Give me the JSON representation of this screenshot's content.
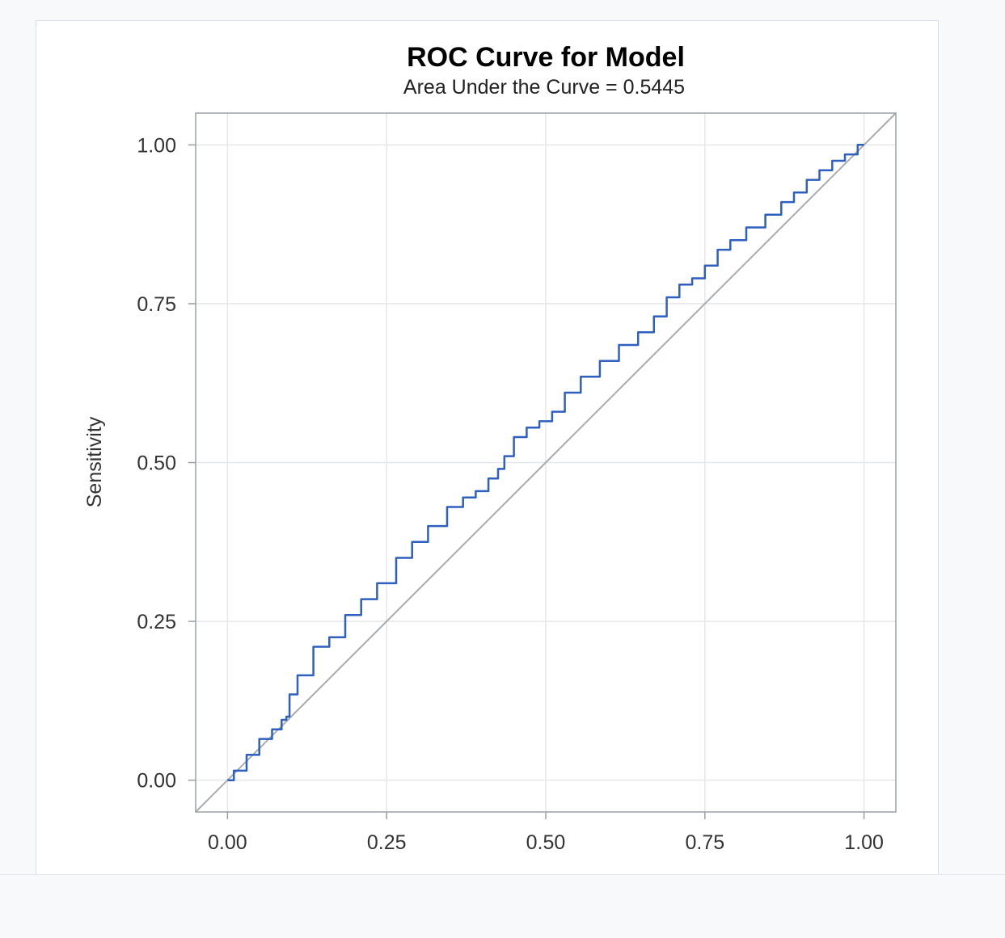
{
  "chart_data": {
    "type": "line",
    "title": "ROC Curve for Model",
    "subtitle": "Area Under the Curve = 0.5445",
    "ylabel": "Sensitivity",
    "xlim": [
      -0.05,
      1.05
    ],
    "ylim": [
      -0.05,
      1.05
    ],
    "x_ticks": [
      "0.00",
      "0.25",
      "0.50",
      "0.75",
      "1.00"
    ],
    "y_ticks": [
      "0.00",
      "0.25",
      "0.50",
      "0.75",
      "1.00"
    ],
    "grid": true,
    "legend": "none",
    "colors": {
      "curve": "#2f5fbf",
      "reference": "#a9abae"
    },
    "series": [
      {
        "x": [
          0.0,
          0.02,
          0.04,
          0.06,
          0.08,
          0.09,
          0.095,
          0.1,
          0.12,
          0.15,
          0.17,
          0.2,
          0.22,
          0.25,
          0.28,
          0.3,
          0.33,
          0.36,
          0.38,
          0.4,
          0.42,
          0.43,
          0.44,
          0.46,
          0.48,
          0.5,
          0.52,
          0.54,
          0.57,
          0.6,
          0.63,
          0.66,
          0.68,
          0.7,
          0.72,
          0.74,
          0.76,
          0.78,
          0.8,
          0.83,
          0.86,
          0.88,
          0.9,
          0.92,
          0.94,
          0.96,
          0.98,
          1.0
        ],
        "y": [
          0.0,
          0.015,
          0.04,
          0.065,
          0.08,
          0.095,
          0.1,
          0.135,
          0.165,
          0.21,
          0.225,
          0.26,
          0.285,
          0.31,
          0.35,
          0.375,
          0.4,
          0.43,
          0.445,
          0.455,
          0.475,
          0.49,
          0.51,
          0.54,
          0.555,
          0.565,
          0.58,
          0.61,
          0.635,
          0.66,
          0.685,
          0.705,
          0.73,
          0.76,
          0.78,
          0.79,
          0.81,
          0.835,
          0.85,
          0.87,
          0.89,
          0.91,
          0.925,
          0.945,
          0.96,
          0.975,
          0.985,
          1.0
        ]
      },
      {
        "x": [
          -0.05,
          1.05
        ],
        "y": [
          -0.05,
          1.05
        ]
      }
    ]
  }
}
